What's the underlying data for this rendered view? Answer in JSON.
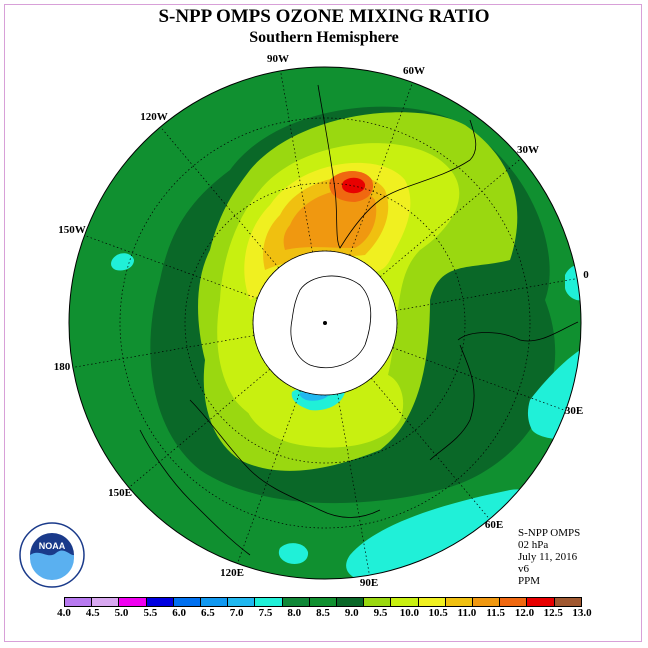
{
  "title": "S-NPP OMPS OZONE MIXING RATIO",
  "subtitle": "Southern Hemisphere",
  "longitude_labels": {
    "w90": "90W",
    "w60": "60W",
    "w30": "30W",
    "e0": "0",
    "e30": "30E",
    "e60": "60E",
    "e90": "90E",
    "e120": "120E",
    "e150": "150E",
    "lon180": "180",
    "w150": "150W",
    "w120": "120W"
  },
  "info": {
    "instrument": "S-NPP OMPS",
    "level": "02 hPa",
    "date": "July 11, 2016",
    "version": "v6",
    "units": "PPM"
  },
  "logo_text": "NOAA",
  "colorbar": {
    "ticks": [
      "4.0",
      "4.5",
      "5.0",
      "5.5",
      "6.0",
      "6.5",
      "7.0",
      "7.5",
      "8.0",
      "8.5",
      "9.0",
      "9.5",
      "10.0",
      "10.5",
      "11.0",
      "11.5",
      "12.0",
      "12.5",
      "13.0"
    ],
    "colors": [
      "#b87af0",
      "#d8a8f0",
      "#f000f0",
      "#0000e0",
      "#0070f0",
      "#1098f0",
      "#20b8f0",
      "#20f0d8",
      "#108838",
      "#109030",
      "#0a6828",
      "#9ad810",
      "#c8f010",
      "#f0f020",
      "#f0c010",
      "#f09810",
      "#f06810",
      "#e80000",
      "#a05830"
    ]
  },
  "map_colors": {
    "ocean_bg": "#109030",
    "dark_band": "#0a6828",
    "level_9_5": "#9ad810",
    "level_10": "#c8f010",
    "level_10_5": "#f0f020",
    "level_11": "#f0c010",
    "level_11_5": "#f09810",
    "level_12": "#f06810",
    "level_12_5": "#e80000",
    "low_8": "#20f0d8",
    "low_7_5": "#20b8f0",
    "pole_mask": "#ffffff"
  }
}
